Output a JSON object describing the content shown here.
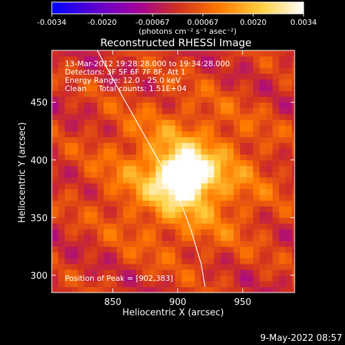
{
  "chart_data": {
    "type": "heatmap",
    "title": "Reconstructed RHESSI Image",
    "xlabel": "Heliocentric X (arcsec)",
    "ylabel": "Heliocentric Y (arcsec)",
    "xlim": [
      803,
      990
    ],
    "ylim": [
      285,
      495
    ],
    "xticks": [
      850,
      900,
      950
    ],
    "yticks": [
      300,
      350,
      400,
      450
    ],
    "colorbar": {
      "label": "(photons cm⁻² s⁻¹ asec⁻²)",
      "range": [
        -0.0034,
        0.0034
      ],
      "ticks": [
        "-0.0034",
        "-0.0020",
        "-0.00067",
        "0.00067",
        "0.0020",
        "0.0034"
      ],
      "colors": [
        "#0000ff",
        "#5a00d0",
        "#a000a0",
        "#d03020",
        "#ff7a00",
        "#ffd040",
        "#ffffff"
      ]
    },
    "annotations": [
      "13-Mar-2012 19:28:28.000 to 19:34:28.000",
      "Detectors: 3F 5F 6F 7F 8F, Att 1",
      "Energy Range: 12.0 - 25.0 keV",
      "Clean     Total counts: 1.51E+04"
    ],
    "peak_label": "Position of Peak = [902,383]",
    "peak": {
      "x": 902,
      "y": 383,
      "value": 0.0034
    },
    "limb_line": [
      [
        838,
        495
      ],
      [
        855,
        460
      ],
      [
        870,
        430
      ],
      [
        885,
        400
      ],
      [
        900,
        370
      ],
      [
        910,
        340
      ],
      [
        918,
        310
      ],
      [
        921,
        290
      ]
    ],
    "grid": false
  },
  "footer_date": "9-May-2022 08:57"
}
